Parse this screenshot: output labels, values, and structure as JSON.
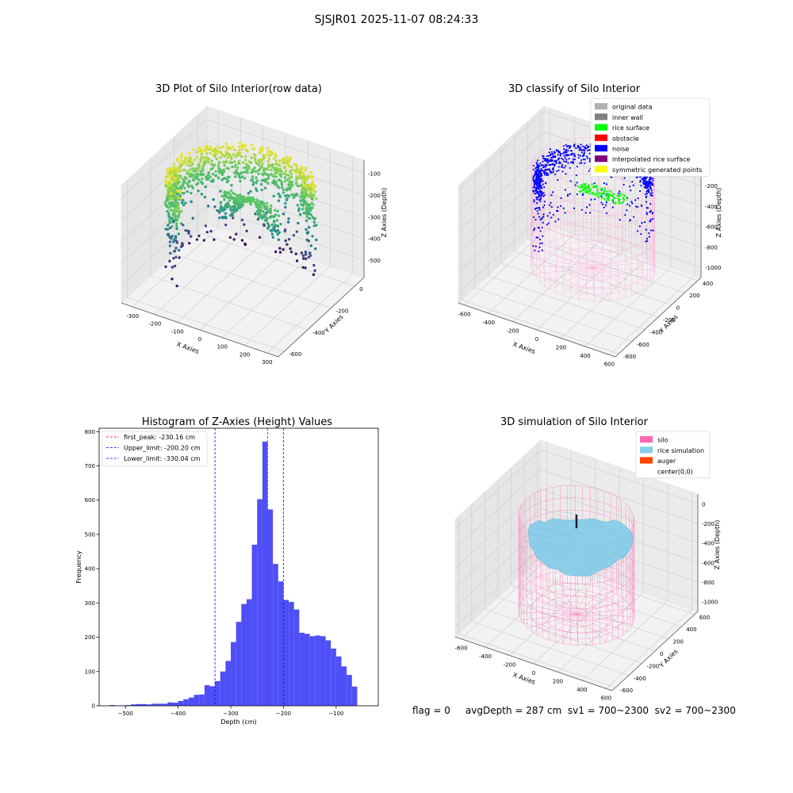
{
  "suptitle": "SJSJR01 2025-11-07 08:24:33",
  "footer": "flag = 0     avgDepth = 287 cm  sv1 = 700~2300  sv2 = 700~2300",
  "colors": {
    "histogram_bar": "#4f4ff7",
    "first_peak": "#ff0000",
    "limit_lines": "#0000ff",
    "pane": "#f2f2f2",
    "silo_wire": "#ff69b4"
  },
  "chart_data": [
    {
      "type": "scatter3d",
      "title": "3D Plot of Silo Interior(row data)",
      "xlabel": "X Axies",
      "ylabel": "Y Axies",
      "zlabel": "Z Axies (Depth)",
      "xticks": [
        "-300",
        "-200",
        "-100",
        "0",
        "100",
        "200",
        "300"
      ],
      "yticks": [
        "-600",
        "-400",
        "-200",
        "0"
      ],
      "zticks": [
        "-100",
        "-200",
        "-300",
        "-400",
        "-500"
      ],
      "xlim": [
        -350,
        350
      ],
      "ylim": [
        -650,
        80
      ],
      "zlim": [
        -580,
        -40
      ],
      "colormap": "viridis"
    },
    {
      "type": "scatter3d",
      "title": "3D classify of Silo Interior",
      "xlabel": "X Axies",
      "ylabel": "Y Axies",
      "zlabel": "Z Axies (Depth)",
      "xticks": [
        "-600",
        "-400",
        "-200",
        "0",
        "200",
        "400",
        "600"
      ],
      "yticks": [
        "-800",
        "-600",
        "-400",
        "-200",
        "0",
        "200",
        "400"
      ],
      "zticks": [
        "0",
        "-200",
        "-400",
        "-600",
        "-800",
        "-1000"
      ],
      "xlim": [
        -650,
        650
      ],
      "ylim": [
        -850,
        450
      ],
      "zlim": [
        -1100,
        50
      ],
      "legend_position": "upper right",
      "legend": [
        {
          "label": "original data",
          "color": "#b0b0b0"
        },
        {
          "label": "inner wall",
          "color": "#808080"
        },
        {
          "label": "rice surface",
          "color": "#00ff00"
        },
        {
          "label": "obstacle",
          "color": "#ff0000"
        },
        {
          "label": "noise",
          "color": "#0000ff"
        },
        {
          "label": "interpolated rice surface",
          "color": "#800080"
        },
        {
          "label": "symmetric generated points",
          "color": "#ffff00"
        }
      ]
    },
    {
      "type": "bar",
      "title": "Histogram of Z-Axies (Height) Values",
      "xlabel": "Depth (cm)",
      "ylabel": "Frequency",
      "xticks": [
        -500,
        -400,
        -300,
        -200,
        -100
      ],
      "yticks": [
        0,
        100,
        200,
        300,
        400,
        500,
        600,
        700,
        800
      ],
      "xlim": [
        -550,
        -20
      ],
      "ylim": [
        0,
        810
      ],
      "bin_start": -530,
      "bin_width": 10,
      "values": [
        2,
        1,
        1,
        2,
        4,
        5,
        5,
        4,
        6,
        6,
        6,
        10,
        9,
        14,
        19,
        24,
        32,
        33,
        60,
        57,
        72,
        100,
        131,
        186,
        245,
        297,
        311,
        470,
        603,
        771,
        573,
        414,
        363,
        309,
        303,
        281,
        213,
        210,
        203,
        205,
        203,
        191,
        167,
        144,
        115,
        90,
        56
      ],
      "legend_position": "upper left",
      "vlines": [
        {
          "label": "first_peak: -230.16 cm",
          "x": -230.16,
          "color": "#ff0000"
        },
        {
          "label": "Upper_limit: -200.20 cm",
          "x": -200.2,
          "color": "#0000ff"
        },
        {
          "label": "Lower_limit: -330.04 cm",
          "x": -330.04,
          "color": "#0000ff"
        }
      ]
    },
    {
      "type": "surface3d",
      "title": "3D simulation of Silo Interior",
      "xlabel": "X Axies",
      "ylabel": "Y Axies",
      "zlabel": "Z Axies (Depth)",
      "xticks": [
        "-600",
        "-400",
        "-200",
        "0",
        "200",
        "400",
        "600"
      ],
      "yticks": [
        "-600",
        "-400",
        "-200",
        "0",
        "200",
        "400",
        "600"
      ],
      "zticks": [
        "0",
        "-200",
        "-400",
        "-600",
        "-800",
        "-1000"
      ],
      "xlim": [
        -650,
        650
      ],
      "ylim": [
        -650,
        650
      ],
      "zlim": [
        -1100,
        100
      ],
      "legend_position": "upper right",
      "legend": [
        {
          "label": "silo",
          "color": "#ff69b4"
        },
        {
          "label": "rice simulation",
          "color": "#87ceeb"
        },
        {
          "label": "auger",
          "color": "#ff4500"
        },
        {
          "label": "center(0,0)",
          "color": "#ffffff"
        }
      ]
    }
  ]
}
